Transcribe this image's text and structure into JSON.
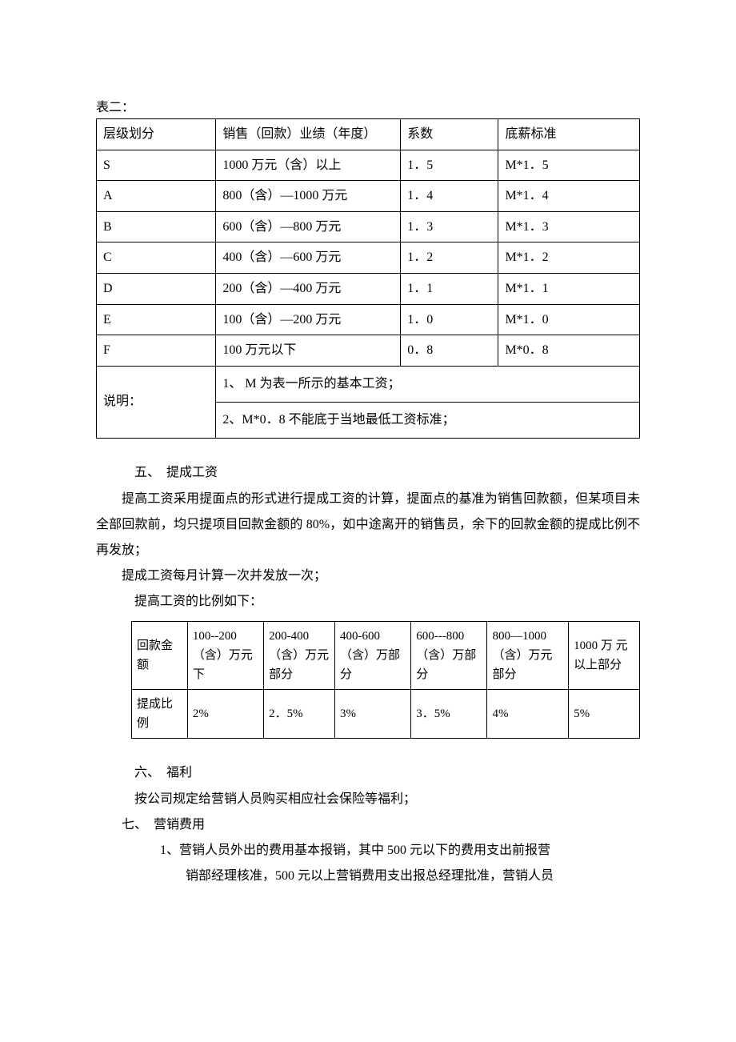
{
  "colors": {
    "text": "#000000",
    "border": "#000000",
    "background": "#ffffff"
  },
  "fonts": {
    "body_family": "SimSun",
    "body_size_pt": 12
  },
  "table2": {
    "label": "表二：",
    "headers": [
      "层级划分",
      "销售（回款）业绩（年度）",
      "系数",
      "底薪标准"
    ],
    "rows": [
      [
        "S",
        "1000 万元（含）以上",
        "1．5",
        "M*1．5"
      ],
      [
        "A",
        "800（含）—1000 万元",
        "1．4",
        "M*1．4"
      ],
      [
        "B",
        "600（含）—800 万元",
        "1．3",
        "M*1．3"
      ],
      [
        "C",
        "400（含）—600 万元",
        "1．2",
        "M*1．2"
      ],
      [
        "D",
        "200（含）—400 万元",
        "1．1",
        "M*1．1"
      ],
      [
        "E",
        "100（含）—200 万元",
        "1．0",
        "M*1．0"
      ],
      [
        "F",
        "100 万元以下",
        "0．8",
        "M*0．8"
      ]
    ],
    "note_label": "说明：",
    "note_line1": "1、 M 为表一所示的基本工资；",
    "note_line2": "2、M*0．8 不能底于当地最低工资标准；"
  },
  "section5": {
    "heading": "五、　提成工资",
    "p1": "提高工资采用提面点的形式进行提成工资的计算，提面点的基准为销售回款额，但某项目未全部回款前，均只提项目回款金额的 80%，如中途离开的销售员，余下的回款金额的提成比例不再发放；",
    "p2": "提成工资每月计算一次并发放一次；",
    "p3": "提高工资的比例如下："
  },
  "table3": {
    "row1": [
      "回款金额",
      "100--200（含）万元下",
      "200-400（含）万元部分",
      "400-600（含）万部分",
      "600---800（含）万部分",
      "800—1000（含）万元部分",
      "1000 万 元以上部分"
    ],
    "row2": [
      "提成比例",
      "2%",
      "2．5%",
      "3%",
      "3．5%",
      "4%",
      "5%"
    ]
  },
  "section6": {
    "heading": "六、　福利",
    "p1": "按公司规定给营销人员购买相应社会保险等福利；"
  },
  "section7": {
    "heading": "七、　营销费用",
    "item1_num": "1、",
    "item1_line1": "营销人员外出的费用基本报销，其中 500 元以下的费用支出前报营",
    "item1_line2": "销部经理核准，500 元以上营销费用支出报总经理批准，营销人员"
  }
}
